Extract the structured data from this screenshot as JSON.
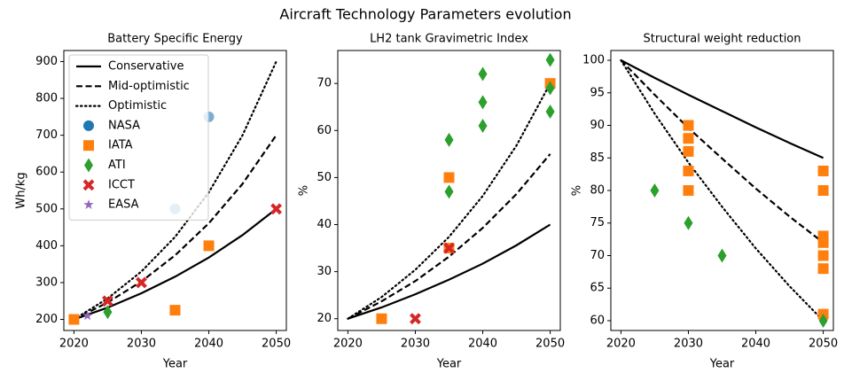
{
  "title": "Aircraft Technology Parameters evolution",
  "chart_data": [
    {
      "type": "line",
      "title": "Battery Specific Energy",
      "xlabel": "Year",
      "ylabel": "Wh/kg",
      "xlim": [
        2018.5,
        2051.5
      ],
      "ylim": [
        170,
        930
      ],
      "xticks": [
        2020,
        2030,
        2040,
        2050
      ],
      "yticks": [
        200,
        300,
        400,
        500,
        600,
        700,
        800,
        900
      ],
      "legend": "upper left",
      "series": [
        {
          "name": "Conservative",
          "color": "#000000",
          "style": "solid",
          "x": [
            2020,
            2025,
            2030,
            2035,
            2040,
            2045,
            2050
          ],
          "values": [
            200,
            232,
            271,
            316,
            368,
            429,
            500
          ]
        },
        {
          "name": "Mid-optimistic",
          "color": "#000000",
          "style": "dashed",
          "x": [
            2020,
            2025,
            2030,
            2035,
            2040,
            2045,
            2050
          ],
          "values": [
            200,
            246,
            303,
            374,
            461,
            568,
            700
          ]
        },
        {
          "name": "Optimistic",
          "color": "#000000",
          "style": "dotted",
          "x": [
            2020,
            2025,
            2030,
            2035,
            2040,
            2045,
            2050
          ],
          "values": [
            200,
            257,
            330,
            424,
            545,
            700,
            900
          ]
        },
        {
          "name": "NASA",
          "color": "#1f77b4",
          "alpha": 0.6,
          "marker": "circle",
          "x": [
            2035,
            2040
          ],
          "values": [
            500,
            750
          ]
        },
        {
          "name": "IATA",
          "color": "#ff7f0e",
          "marker": "square",
          "x": [
            2020,
            2035,
            2040
          ],
          "values": [
            200,
            225,
            400
          ]
        },
        {
          "name": "ATI",
          "color": "#2ca02c",
          "marker": "diamond",
          "x": [
            2025
          ],
          "values": [
            220
          ]
        },
        {
          "name": "ICCT",
          "color": "#d62728",
          "marker": "x",
          "x": [
            2025,
            2030,
            2050
          ],
          "values": [
            250,
            300,
            500
          ]
        },
        {
          "name": "EASA",
          "color": "#9467bd",
          "marker": "star",
          "x": [
            2022
          ],
          "values": [
            210
          ]
        }
      ]
    },
    {
      "type": "line",
      "title": "LH2 tank Gravimetric Index",
      "xlabel": "Year",
      "ylabel": "%",
      "xlim": [
        2018.5,
        2051.5
      ],
      "ylim": [
        17.5,
        77
      ],
      "xticks": [
        2020,
        2030,
        2040,
        2050
      ],
      "yticks": [
        20,
        30,
        40,
        50,
        60,
        70
      ],
      "series": [
        {
          "color": "#000000",
          "style": "solid",
          "x": [
            2020,
            2025,
            2030,
            2035,
            2040,
            2045,
            2050
          ],
          "values": [
            20,
            22.4,
            25.2,
            28.3,
            31.7,
            35.6,
            40
          ]
        },
        {
          "color": "#000000",
          "style": "dashed",
          "x": [
            2020,
            2025,
            2030,
            2035,
            2040,
            2045,
            2050
          ],
          "values": [
            20,
            23.7,
            28.0,
            33.2,
            39.3,
            46.5,
            55
          ]
        },
        {
          "color": "#000000",
          "style": "dotted",
          "x": [
            2020,
            2025,
            2030,
            2035,
            2040,
            2045,
            2050
          ],
          "values": [
            20,
            24.6,
            30.4,
            37.4,
            46.1,
            56.8,
            70
          ]
        },
        {
          "color": "#ff7f0e",
          "marker": "square",
          "x": [
            2025,
            2035,
            2035,
            2050
          ],
          "values": [
            20,
            50,
            35,
            70
          ]
        },
        {
          "color": "#2ca02c",
          "marker": "diamond",
          "x": [
            2035,
            2035,
            2040,
            2040,
            2040,
            2050,
            2050,
            2050
          ],
          "values": [
            58,
            47,
            72,
            66,
            61,
            75,
            69,
            64
          ]
        },
        {
          "color": "#d62728",
          "marker": "x",
          "x": [
            2030,
            2035
          ],
          "values": [
            20,
            35
          ]
        }
      ]
    },
    {
      "type": "line",
      "title": "Structural weight reduction",
      "xlabel": "Year",
      "ylabel": "%",
      "xlim": [
        2018.5,
        2051.5
      ],
      "ylim": [
        58.5,
        101.5
      ],
      "xticks": [
        2020,
        2030,
        2040,
        2050
      ],
      "yticks": [
        60,
        65,
        70,
        75,
        80,
        85,
        90,
        95,
        100
      ],
      "series": [
        {
          "color": "#000000",
          "style": "solid",
          "x": [
            2020,
            2025,
            2030,
            2035,
            2040,
            2045,
            2050
          ],
          "values": [
            100,
            97.3,
            94.7,
            92.2,
            89.7,
            87.3,
            85
          ]
        },
        {
          "color": "#000000",
          "style": "dashed",
          "x": [
            2020,
            2025,
            2030,
            2035,
            2040,
            2045,
            2050
          ],
          "values": [
            100,
            94.7,
            89.6,
            84.9,
            80.3,
            76.0,
            72
          ]
        },
        {
          "color": "#000000",
          "style": "dotted",
          "x": [
            2020,
            2025,
            2030,
            2035,
            2040,
            2045,
            2050
          ],
          "values": [
            100,
            91.8,
            84.3,
            77.5,
            71.1,
            65.3,
            60
          ]
        },
        {
          "color": "#ff7f0e",
          "marker": "square",
          "x": [
            2030,
            2030,
            2030,
            2030,
            2030,
            2050,
            2050,
            2050,
            2050,
            2050,
            2050,
            2050
          ],
          "values": [
            90,
            88,
            86,
            83,
            80,
            83,
            80,
            73,
            72,
            70,
            68,
            61
          ]
        },
        {
          "color": "#2ca02c",
          "marker": "diamond",
          "x": [
            2025,
            2030,
            2035,
            2050
          ],
          "values": [
            80,
            75,
            70,
            60
          ]
        }
      ]
    }
  ]
}
